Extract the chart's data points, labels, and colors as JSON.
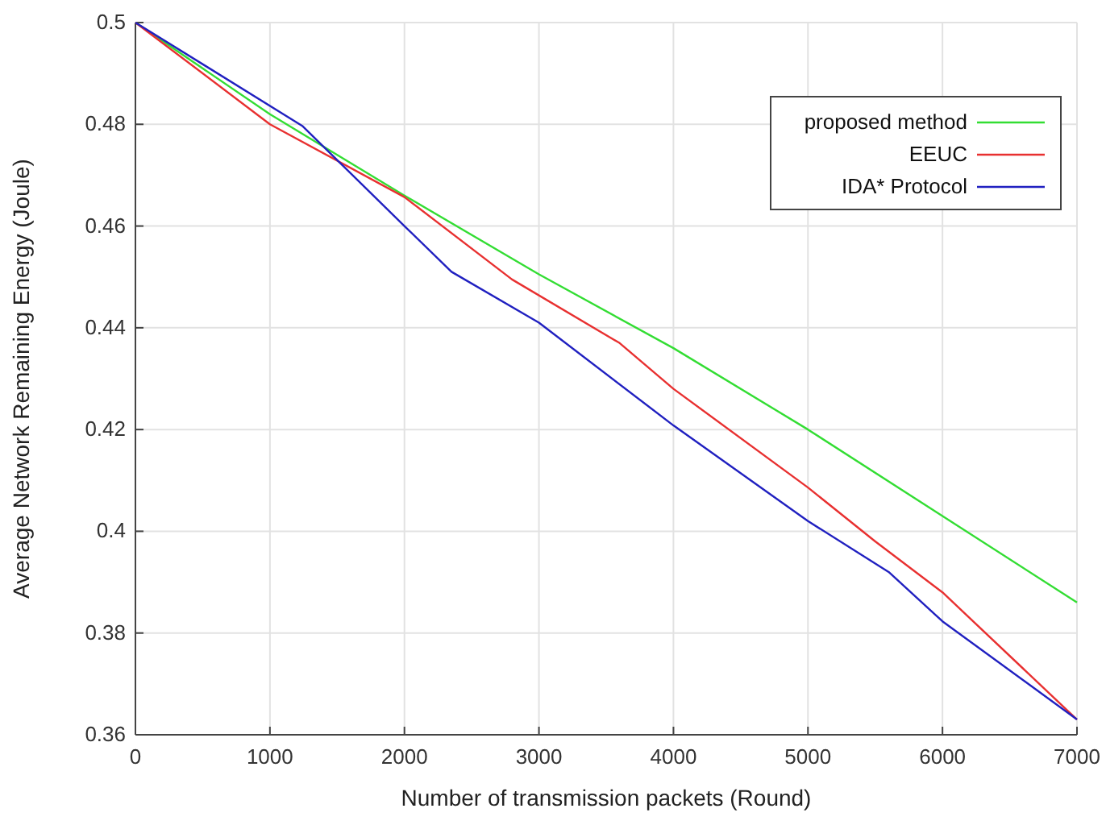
{
  "chart_data": {
    "type": "line",
    "xlabel": "Number of transmission packets (Round)",
    "ylabel": "Average Network Remaining Energy (Joule)",
    "xlim": [
      0,
      7000
    ],
    "xticks": [
      0,
      1000,
      2000,
      3000,
      4000,
      5000,
      6000,
      7000
    ],
    "ylim": [
      0.36,
      0.5
    ],
    "yticks": [
      0.36,
      0.38,
      0.4,
      0.42,
      0.44,
      0.46,
      0.48,
      0.5
    ],
    "grid": true,
    "legend": "top right",
    "line_style": "solid",
    "marker": "none",
    "series": [
      {
        "name": "proposed method",
        "color": "#33dd33",
        "x": [
          0,
          1000,
          2000,
          3000,
          4000,
          5000,
          6000,
          7000
        ],
        "values": [
          0.5,
          0.482,
          0.466,
          0.4505,
          0.436,
          0.42,
          0.403,
          0.386
        ]
      },
      {
        "name": "EEUC",
        "color": "#e83030",
        "x": [
          0,
          1000,
          2000,
          2800,
          3600,
          4000,
          5000,
          5500,
          6000,
          7000
        ],
        "values": [
          0.5,
          0.48,
          0.4657,
          0.4495,
          0.437,
          0.428,
          0.4086,
          0.398,
          0.388,
          0.363
        ]
      },
      {
        "name": "IDA* Protocol",
        "color": "#2020c0",
        "x": [
          0,
          1240,
          2000,
          2350,
          3000,
          4000,
          5000,
          5600,
          6000,
          7000
        ],
        "values": [
          0.5,
          0.4797,
          0.46,
          0.451,
          0.441,
          0.4208,
          0.402,
          0.392,
          0.3823,
          0.363
        ]
      }
    ]
  }
}
